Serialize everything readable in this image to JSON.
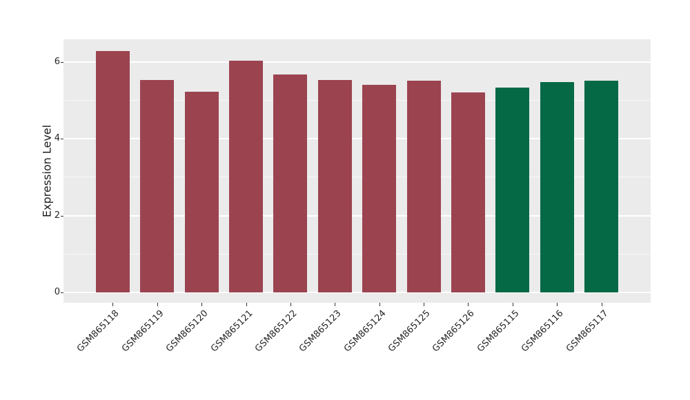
{
  "figure": {
    "background": "#FFFFFF",
    "panel_background": "#EBEBEB",
    "grid_major_color": "#FFFFFF",
    "grid_minor_color": "rgba(255,255,255,0.65)",
    "tick_color": "#333333",
    "text_color": "#262626"
  },
  "chart_data": {
    "type": "bar",
    "title": "",
    "xlabel": "",
    "ylabel": "Expression Level",
    "categories": [
      "GSM865118",
      "GSM865119",
      "GSM865120",
      "GSM865121",
      "GSM865122",
      "GSM865123",
      "GSM865124",
      "GSM865125",
      "GSM865126",
      "GSM865115",
      "GSM865116",
      "GSM865117"
    ],
    "values": [
      6.28,
      5.52,
      5.22,
      6.03,
      5.67,
      5.52,
      5.4,
      5.51,
      5.2,
      5.33,
      5.47,
      5.51
    ],
    "bar_colors": [
      "#9B4450",
      "#9B4450",
      "#9B4450",
      "#9B4450",
      "#9B4450",
      "#9B4450",
      "#9B4450",
      "#9B4450",
      "#9B4450",
      "#066946",
      "#066946",
      "#066946"
    ],
    "color_groups": [
      {
        "color": "#9B4450",
        "count": 9
      },
      {
        "color": "#066946",
        "count": 3
      }
    ],
    "yticks": [
      0,
      2,
      4,
      6
    ],
    "yticks_minor": [
      1,
      3,
      5
    ],
    "ylim": [
      -0.27,
      6.58
    ],
    "grid": true,
    "legend": false,
    "x_tick_rotation": 45
  }
}
